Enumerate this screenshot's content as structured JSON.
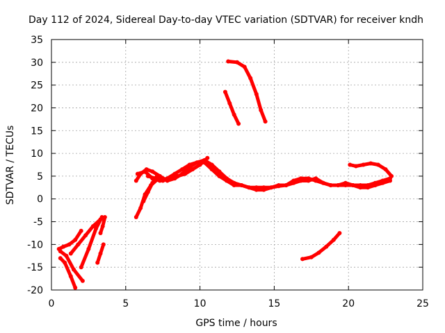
{
  "chart_data": {
    "type": "line",
    "title": "Day 112 of 2024, Sidereal Day-to-day VTEC variation (SDTVAR) for receiver kndh",
    "xlabel": "GPS time / hours",
    "ylabel": "SDTVAR / TECUs",
    "xlim": [
      0,
      25
    ],
    "ylim": [
      -20,
      35
    ],
    "xticks": [
      "0",
      "5",
      "10",
      "15",
      "20",
      "25"
    ],
    "yticks": [
      "-20",
      "-15",
      "-10",
      "-5",
      "0",
      "5",
      "10",
      "15",
      "20",
      "25",
      "30",
      "35"
    ],
    "grid": true,
    "color": "#ff0000",
    "series": [
      {
        "name": "s1",
        "x": [
          0.5,
          0.8,
          1.2,
          1.6,
          2.0
        ],
        "y": [
          -11.0,
          -10.5,
          -10.0,
          -9.0,
          -7.0
        ]
      },
      {
        "name": "s2",
        "x": [
          0.6,
          1.0,
          1.5,
          2.1
        ],
        "y": [
          -11.5,
          -12.5,
          -15.5,
          -18.0
        ]
      },
      {
        "name": "s3",
        "x": [
          0.6,
          0.9,
          1.3,
          1.6
        ],
        "y": [
          -13.0,
          -14.0,
          -17.0,
          -19.5
        ]
      },
      {
        "name": "s4",
        "x": [
          1.3,
          1.8,
          2.3,
          2.8,
          3.3
        ],
        "y": [
          -12.0,
          -10.0,
          -8.0,
          -6.0,
          -4.5
        ]
      },
      {
        "name": "s5",
        "x": [
          2.0,
          2.5,
          3.0,
          3.4
        ],
        "y": [
          -15.0,
          -11.0,
          -6.5,
          -4.0
        ]
      },
      {
        "name": "s6",
        "x": [
          3.1,
          3.3,
          3.5
        ],
        "y": [
          -14.0,
          -12.0,
          -10.0
        ]
      },
      {
        "name": "s7",
        "x": [
          3.3,
          3.45,
          3.6
        ],
        "y": [
          -7.5,
          -6.0,
          -4.0
        ]
      },
      {
        "name": "s8",
        "x": [
          5.7,
          6.0,
          6.3,
          6.7,
          7.2
        ],
        "y": [
          -4.0,
          -2.0,
          1.0,
          3.0,
          4.5
        ]
      },
      {
        "name": "s9",
        "x": [
          6.2,
          6.5,
          6.8,
          7.1
        ],
        "y": [
          -0.5,
          1.5,
          3.5,
          5.0
        ]
      },
      {
        "name": "s10",
        "x": [
          5.7,
          6.0,
          6.4,
          6.8,
          7.3,
          7.8,
          8.3,
          8.8,
          9.3,
          9.8,
          10.3,
          10.8,
          11.3,
          11.8,
          12.3,
          12.8,
          13.3,
          13.8,
          14.3,
          14.8,
          15.3,
          15.8,
          16.3,
          16.8,
          17.3,
          17.8,
          18.3,
          18.8,
          19.3,
          19.8,
          20.3,
          20.8,
          21.3,
          21.8,
          22.3,
          22.8
        ],
        "y": [
          4.0,
          5.5,
          6.5,
          6.0,
          5.0,
          4.0,
          4.5,
          5.5,
          7.0,
          8.0,
          8.0,
          6.5,
          5.0,
          4.0,
          3.0,
          3.0,
          2.5,
          2.5,
          2.5,
          2.5,
          2.8,
          3.0,
          3.5,
          4.0,
          4.0,
          4.5,
          3.5,
          3.0,
          3.0,
          3.0,
          3.0,
          3.0,
          3.0,
          3.5,
          4.0,
          4.5
        ]
      },
      {
        "name": "s11",
        "x": [
          5.8,
          6.3,
          6.8,
          7.3,
          7.8,
          8.3,
          8.8,
          9.3,
          9.8,
          10.3,
          10.8,
          11.3,
          11.8,
          12.3,
          12.8,
          13.3,
          13.8,
          14.3,
          14.8,
          15.3,
          15.8,
          16.3,
          16.8,
          17.3,
          17.8,
          18.3,
          18.8,
          19.3,
          19.8,
          20.3,
          20.8,
          21.3,
          21.8,
          22.3,
          22.8
        ],
        "y": [
          5.5,
          6.0,
          4.5,
          4.0,
          4.5,
          5.5,
          6.5,
          7.5,
          8.0,
          8.5,
          7.5,
          6.0,
          4.5,
          3.5,
          3.0,
          2.5,
          2.0,
          2.0,
          2.5,
          3.0,
          3.0,
          4.0,
          4.5,
          4.5,
          4.0,
          3.5,
          3.0,
          3.0,
          3.5,
          3.0,
          2.5,
          2.5,
          3.0,
          3.5,
          4.0
        ]
      },
      {
        "name": "s12",
        "x": [
          6.5,
          7.0,
          7.5,
          8.0,
          8.5,
          9.0,
          9.5,
          10.0,
          10.5
        ],
        "y": [
          5.0,
          4.5,
          4.0,
          4.5,
          5.0,
          5.5,
          6.5,
          7.5,
          9.0
        ]
      },
      {
        "name": "s13",
        "x": [
          20.1,
          20.5,
          21.0,
          21.5,
          22.0,
          22.5,
          22.9
        ],
        "y": [
          7.5,
          7.2,
          7.5,
          7.8,
          7.5,
          6.5,
          5.0
        ]
      },
      {
        "name": "s14",
        "x": [
          11.7,
          12.0,
          12.3,
          12.6
        ],
        "y": [
          23.5,
          21.0,
          18.5,
          16.5
        ]
      },
      {
        "name": "s15",
        "x": [
          11.9,
          12.5,
          13.0,
          13.4,
          13.8,
          14.1,
          14.4
        ],
        "y": [
          30.2,
          30.0,
          29.0,
          26.5,
          23.0,
          19.5,
          17.0
        ]
      },
      {
        "name": "s16",
        "x": [
          16.9,
          17.5,
          18.0,
          18.5,
          19.0,
          19.4
        ],
        "y": [
          -13.2,
          -12.8,
          -11.8,
          -10.5,
          -9.0,
          -7.5
        ]
      }
    ]
  }
}
